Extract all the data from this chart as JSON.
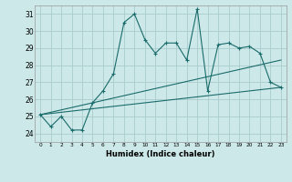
{
  "xlabel": "Humidex (Indice chaleur)",
  "xlim": [
    -0.5,
    23.5
  ],
  "ylim": [
    23.5,
    31.5
  ],
  "yticks": [
    24,
    25,
    26,
    27,
    28,
    29,
    30,
    31
  ],
  "xticks": [
    0,
    1,
    2,
    3,
    4,
    5,
    6,
    7,
    8,
    9,
    10,
    11,
    12,
    13,
    14,
    15,
    16,
    17,
    18,
    19,
    20,
    21,
    22,
    23
  ],
  "bg_color": "#cce8e8",
  "grid_color": "#aacccc",
  "line_color": "#1a6b6b",
  "line1": [
    25.1,
    24.4,
    25.0,
    24.2,
    24.2,
    25.8,
    26.5,
    27.5,
    30.5,
    31.0,
    29.5,
    28.7,
    29.3,
    29.3,
    28.3,
    31.3,
    26.5,
    29.2,
    29.3,
    29.0,
    29.1,
    28.7,
    27.0,
    26.7
  ],
  "line2_x": [
    0,
    23
  ],
  "line2_y": [
    25.1,
    26.7
  ],
  "line3_x": [
    0,
    23
  ],
  "line3_y": [
    25.1,
    28.3
  ]
}
